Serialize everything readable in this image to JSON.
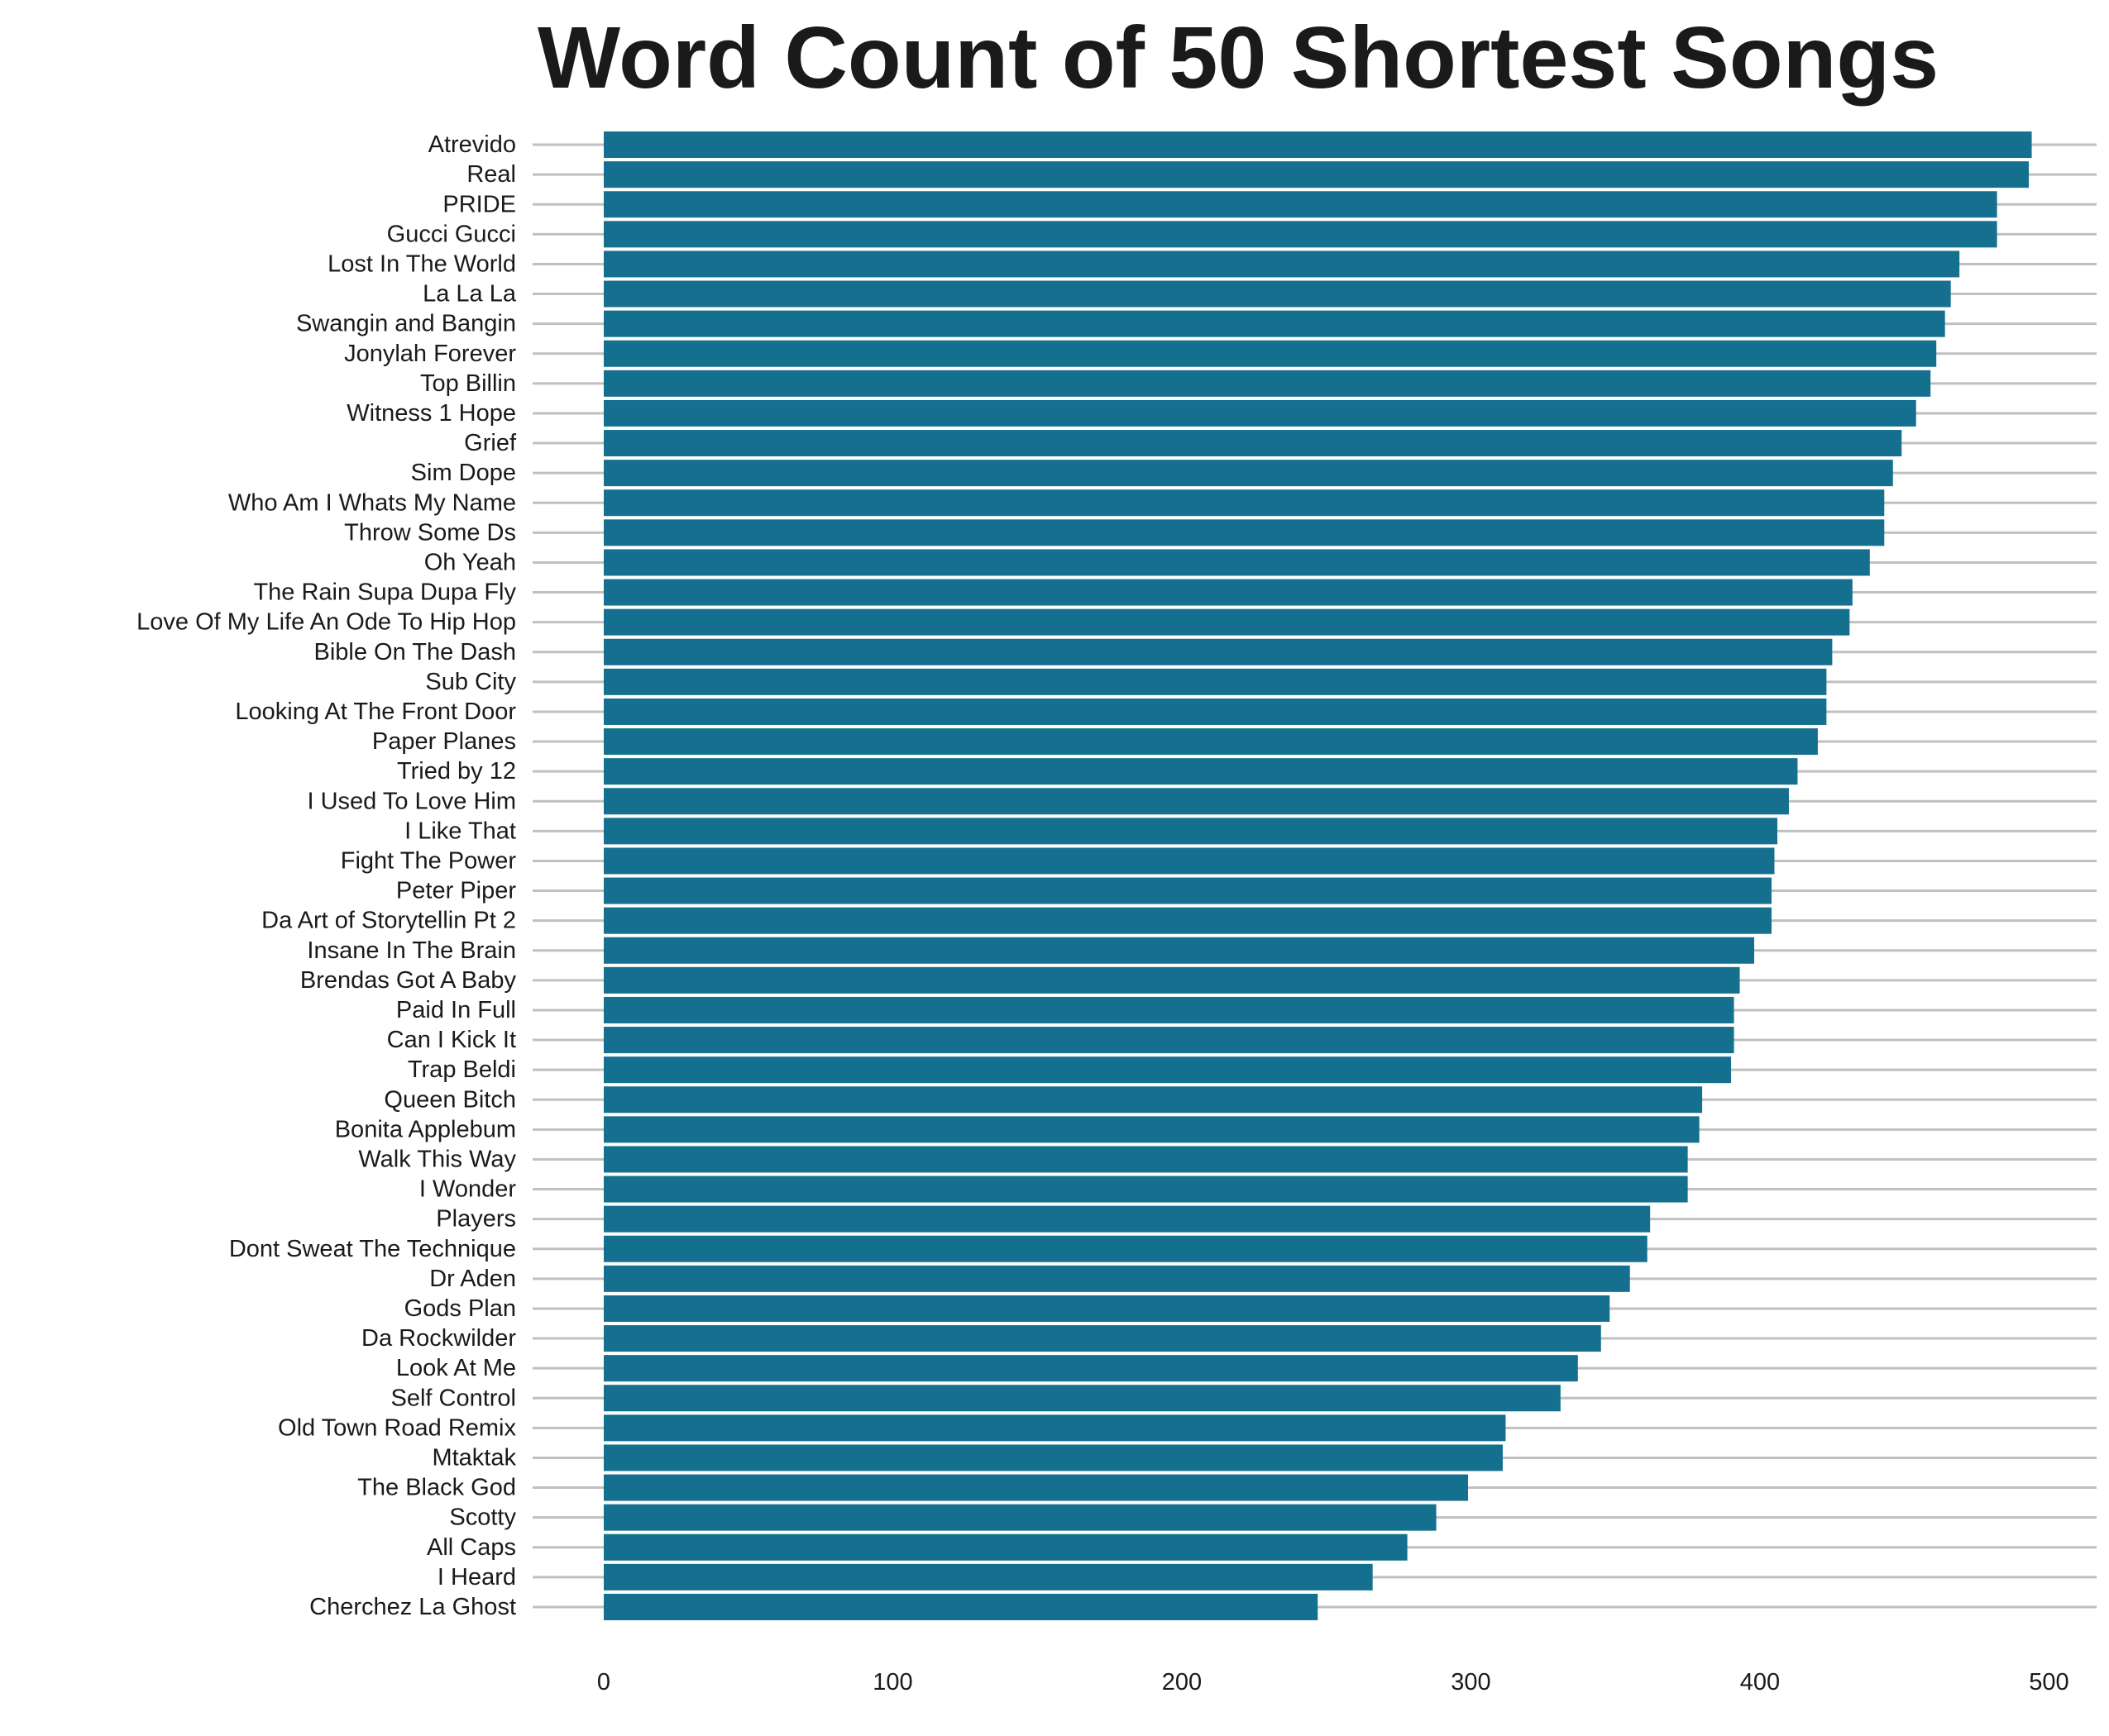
{
  "chart_data": {
    "type": "bar",
    "orientation": "horizontal",
    "title": "Word Count of 50 Shortest Songs",
    "xlabel": "",
    "ylabel": "",
    "xlim": [
      0,
      515
    ],
    "xticks": [
      "0",
      "100",
      "200",
      "300",
      "400",
      "500"
    ],
    "grid": "horizontal lines behind each bar",
    "legend": "none",
    "bar_color": "#156f8f",
    "grid_color": "#c0c0c0",
    "categories": [
      "Atrevido",
      "Real",
      "PRIDE",
      "Gucci Gucci",
      "Lost In The World",
      "La La La",
      "Swangin and Bangin",
      "Jonylah Forever",
      "Top Billin",
      "Witness 1 Hope",
      "Grief",
      "Sim Dope",
      "Who Am I Whats My Name",
      "Throw Some Ds",
      "Oh Yeah",
      "The Rain Supa Dupa Fly",
      "Love Of My Life An Ode To Hip Hop",
      "Bible On The Dash",
      "Sub City",
      "Looking At The Front Door",
      "Paper Planes",
      "Tried by 12",
      "I Used To Love Him",
      "I Like That",
      "Fight The Power",
      "Peter Piper",
      "Da Art of Storytellin Pt 2",
      "Insane In The Brain",
      "Brendas Got A Baby",
      "Paid In Full",
      "Can I Kick It",
      "Trap Beldi",
      "Queen Bitch",
      "Bonita Applebum",
      "Walk This Way",
      "I Wonder",
      "Players",
      "Dont Sweat The Technique",
      "Dr Aden",
      "Gods Plan",
      "Da Rockwilder",
      "Look At Me",
      "Self Control",
      "Old Town Road Remix",
      "Mtaktak",
      "The Black God",
      "Scotty",
      "All Caps",
      "I Heard",
      "Cherchez La Ghost"
    ],
    "values": [
      494,
      493,
      482,
      482,
      469,
      466,
      464,
      461,
      459,
      454,
      449,
      446,
      443,
      443,
      438,
      432,
      431,
      425,
      423,
      423,
      420,
      413,
      410,
      406,
      405,
      404,
      404,
      398,
      393,
      391,
      391,
      390,
      380,
      379,
      375,
      375,
      362,
      361,
      355,
      348,
      345,
      337,
      331,
      312,
      311,
      299,
      288,
      278,
      266,
      247
    ]
  }
}
